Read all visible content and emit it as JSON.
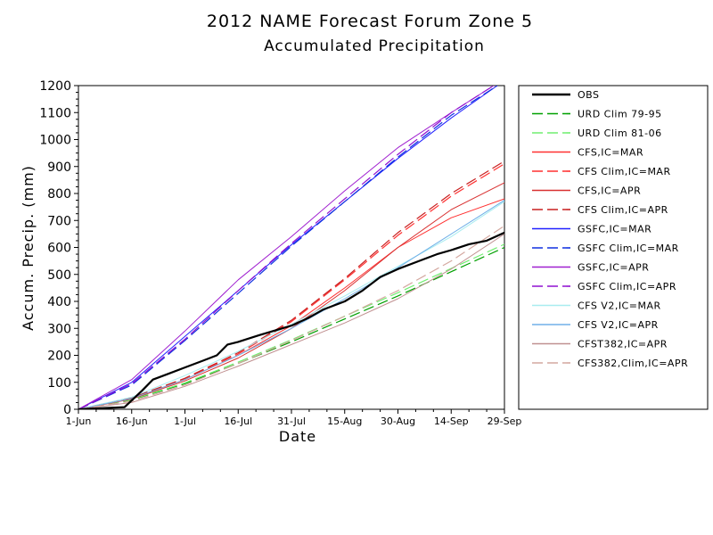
{
  "chart_data": {
    "type": "line",
    "title": "2012 NAME Forecast Forum Zone 5",
    "subtitle": "Accumulated Precipitation",
    "xlabel": "Date",
    "ylabel": "Accum. Precip. (mm)",
    "ylim": [
      0,
      1200
    ],
    "yticks": [
      0,
      100,
      200,
      300,
      400,
      500,
      600,
      700,
      800,
      900,
      1000,
      1100,
      1200
    ],
    "xlim": [
      "2012-06-01",
      "2012-09-29"
    ],
    "xticks": [
      {
        "date": "2012-06-01",
        "label": "1-Jun"
      },
      {
        "date": "2012-06-16",
        "label": "16-Jun"
      },
      {
        "date": "2012-07-01",
        "label": "1-Jul"
      },
      {
        "date": "2012-07-16",
        "label": "16-Jul"
      },
      {
        "date": "2012-07-31",
        "label": "31-Jul"
      },
      {
        "date": "2012-08-15",
        "label": "15-Aug"
      },
      {
        "date": "2012-08-30",
        "label": "30-Aug"
      },
      {
        "date": "2012-09-14",
        "label": "14-Sep"
      },
      {
        "date": "2012-09-29",
        "label": "29-Sep"
      }
    ],
    "grid": false,
    "legend_position": "right",
    "series": [
      {
        "name": "OBS",
        "color": "#000000",
        "dash": "solid",
        "width": 2.2,
        "points": [
          [
            "2012-06-01",
            0
          ],
          [
            "2012-06-14",
            8
          ],
          [
            "2012-06-19",
            70
          ],
          [
            "2012-06-22",
            110
          ],
          [
            "2012-06-26",
            130
          ],
          [
            "2012-07-01",
            155
          ],
          [
            "2012-07-06",
            180
          ],
          [
            "2012-07-10",
            200
          ],
          [
            "2012-07-13",
            240
          ],
          [
            "2012-07-16",
            250
          ],
          [
            "2012-07-22",
            275
          ],
          [
            "2012-07-31",
            310
          ],
          [
            "2012-08-05",
            340
          ],
          [
            "2012-08-09",
            370
          ],
          [
            "2012-08-15",
            400
          ],
          [
            "2012-08-20",
            440
          ],
          [
            "2012-08-25",
            490
          ],
          [
            "2012-08-30",
            520
          ],
          [
            "2012-09-05",
            550
          ],
          [
            "2012-09-10",
            575
          ],
          [
            "2012-09-14",
            590
          ],
          [
            "2012-09-19",
            612
          ],
          [
            "2012-09-24",
            625
          ],
          [
            "2012-09-29",
            655
          ]
        ]
      },
      {
        "name": "URD Clim 79-95",
        "color": "#00a000",
        "dash": "dashed",
        "width": 1.2,
        "points": [
          [
            "2012-06-01",
            0
          ],
          [
            "2012-06-16",
            35
          ],
          [
            "2012-07-01",
            95
          ],
          [
            "2012-07-16",
            170
          ],
          [
            "2012-07-31",
            250
          ],
          [
            "2012-08-15",
            335
          ],
          [
            "2012-08-30",
            420
          ],
          [
            "2012-09-14",
            510
          ],
          [
            "2012-09-29",
            600
          ]
        ]
      },
      {
        "name": "URD Clim 81-06",
        "color": "#70ee70",
        "dash": "dashed",
        "width": 1.2,
        "points": [
          [
            "2012-06-01",
            0
          ],
          [
            "2012-06-16",
            36
          ],
          [
            "2012-07-01",
            98
          ],
          [
            "2012-07-16",
            175
          ],
          [
            "2012-07-31",
            258
          ],
          [
            "2012-08-15",
            345
          ],
          [
            "2012-08-30",
            432
          ],
          [
            "2012-09-14",
            522
          ],
          [
            "2012-09-29",
            612
          ]
        ]
      },
      {
        "name": "CFS,IC=MAR",
        "color": "#ff3030",
        "dash": "solid",
        "width": 1.0,
        "points": [
          [
            "2012-06-01",
            0
          ],
          [
            "2012-06-16",
            40
          ],
          [
            "2012-07-01",
            110
          ],
          [
            "2012-07-16",
            200
          ],
          [
            "2012-07-31",
            310
          ],
          [
            "2012-08-15",
            450
          ],
          [
            "2012-08-30",
            600
          ],
          [
            "2012-09-14",
            710
          ],
          [
            "2012-09-29",
            780
          ]
        ]
      },
      {
        "name": "CFS Clim,IC=MAR",
        "color": "#ff3030",
        "dash": "dashed",
        "width": 1.2,
        "points": [
          [
            "2012-06-01",
            0
          ],
          [
            "2012-06-16",
            42
          ],
          [
            "2012-07-01",
            112
          ],
          [
            "2012-07-16",
            205
          ],
          [
            "2012-07-31",
            325
          ],
          [
            "2012-08-15",
            480
          ],
          [
            "2012-08-30",
            645
          ],
          [
            "2012-09-14",
            790
          ],
          [
            "2012-09-29",
            910
          ]
        ]
      },
      {
        "name": "CFS,IC=APR",
        "color": "#d83030",
        "dash": "solid",
        "width": 1.0,
        "points": [
          [
            "2012-06-01",
            0
          ],
          [
            "2012-06-16",
            38
          ],
          [
            "2012-07-01",
            105
          ],
          [
            "2012-07-16",
            190
          ],
          [
            "2012-07-31",
            300
          ],
          [
            "2012-08-15",
            440
          ],
          [
            "2012-08-30",
            600
          ],
          [
            "2012-09-14",
            740
          ],
          [
            "2012-09-29",
            840
          ]
        ]
      },
      {
        "name": "CFS Clim,IC=APR",
        "color": "#c82020",
        "dash": "dashed",
        "width": 1.2,
        "points": [
          [
            "2012-06-01",
            0
          ],
          [
            "2012-06-16",
            43
          ],
          [
            "2012-07-01",
            115
          ],
          [
            "2012-07-16",
            210
          ],
          [
            "2012-07-31",
            330
          ],
          [
            "2012-08-15",
            485
          ],
          [
            "2012-08-30",
            655
          ],
          [
            "2012-09-14",
            800
          ],
          [
            "2012-09-29",
            920
          ]
        ]
      },
      {
        "name": "GSFC,IC=MAR",
        "color": "#2020ff",
        "dash": "solid",
        "width": 1.0,
        "points": [
          [
            "2012-06-01",
            0
          ],
          [
            "2012-06-16",
            100
          ],
          [
            "2012-07-01",
            270
          ],
          [
            "2012-07-16",
            440
          ],
          [
            "2012-07-31",
            610
          ],
          [
            "2012-08-15",
            770
          ],
          [
            "2012-08-30",
            930
          ],
          [
            "2012-09-14",
            1080
          ],
          [
            "2012-09-27",
            1200
          ]
        ]
      },
      {
        "name": "GSFC Clim,IC=MAR",
        "color": "#1030e0",
        "dash": "dashed",
        "width": 1.2,
        "points": [
          [
            "2012-06-01",
            0
          ],
          [
            "2012-06-16",
            90
          ],
          [
            "2012-07-01",
            255
          ],
          [
            "2012-07-16",
            430
          ],
          [
            "2012-07-31",
            605
          ],
          [
            "2012-08-15",
            770
          ],
          [
            "2012-08-30",
            935
          ],
          [
            "2012-09-14",
            1090
          ],
          [
            "2012-09-27",
            1200
          ]
        ]
      },
      {
        "name": "GSFC,IC=APR",
        "color": "#a020d0",
        "dash": "solid",
        "width": 1.0,
        "points": [
          [
            "2012-06-01",
            0
          ],
          [
            "2012-06-16",
            110
          ],
          [
            "2012-07-01",
            290
          ],
          [
            "2012-07-16",
            480
          ],
          [
            "2012-07-31",
            640
          ],
          [
            "2012-08-15",
            810
          ],
          [
            "2012-08-30",
            970
          ],
          [
            "2012-09-14",
            1100
          ],
          [
            "2012-09-26",
            1200
          ]
        ]
      },
      {
        "name": "GSFC Clim,IC=APR",
        "color": "#9010d0",
        "dash": "dashed",
        "width": 1.2,
        "points": [
          [
            "2012-06-01",
            0
          ],
          [
            "2012-06-16",
            95
          ],
          [
            "2012-07-01",
            260
          ],
          [
            "2012-07-16",
            440
          ],
          [
            "2012-07-31",
            615
          ],
          [
            "2012-08-15",
            780
          ],
          [
            "2012-08-30",
            945
          ],
          [
            "2012-09-14",
            1100
          ],
          [
            "2012-09-26",
            1200
          ]
        ]
      },
      {
        "name": "CFS V2,IC=MAR",
        "color": "#a8ecf0",
        "dash": "solid",
        "width": 1.0,
        "points": [
          [
            "2012-06-01",
            0
          ],
          [
            "2012-06-16",
            45
          ],
          [
            "2012-07-01",
            125
          ],
          [
            "2012-07-16",
            215
          ],
          [
            "2012-07-31",
            315
          ],
          [
            "2012-08-15",
            420
          ],
          [
            "2012-08-30",
            530
          ],
          [
            "2012-09-14",
            640
          ],
          [
            "2012-09-29",
            770
          ]
        ]
      },
      {
        "name": "CFS V2,IC=APR",
        "color": "#70b0e8",
        "dash": "solid",
        "width": 1.0,
        "points": [
          [
            "2012-06-01",
            0
          ],
          [
            "2012-06-16",
            40
          ],
          [
            "2012-07-01",
            110
          ],
          [
            "2012-07-16",
            200
          ],
          [
            "2012-07-31",
            300
          ],
          [
            "2012-08-15",
            410
          ],
          [
            "2012-08-30",
            525
          ],
          [
            "2012-09-14",
            650
          ],
          [
            "2012-09-29",
            775
          ]
        ]
      },
      {
        "name": "CFST382,IC=APR",
        "color": "#c09090",
        "dash": "solid",
        "width": 1.0,
        "points": [
          [
            "2012-06-01",
            0
          ],
          [
            "2012-06-16",
            25
          ],
          [
            "2012-07-01",
            85
          ],
          [
            "2012-07-16",
            160
          ],
          [
            "2012-07-31",
            240
          ],
          [
            "2012-08-15",
            320
          ],
          [
            "2012-08-30",
            410
          ],
          [
            "2012-09-14",
            520
          ],
          [
            "2012-09-29",
            650
          ]
        ]
      },
      {
        "name": "CFS382,Clim,IC=APR",
        "color": "#d4a8a0",
        "dash": "dashed",
        "width": 1.2,
        "points": [
          [
            "2012-06-01",
            0
          ],
          [
            "2012-06-16",
            30
          ],
          [
            "2012-07-01",
            90
          ],
          [
            "2012-07-16",
            170
          ],
          [
            "2012-07-31",
            255
          ],
          [
            "2012-08-15",
            345
          ],
          [
            "2012-08-30",
            440
          ],
          [
            "2012-09-14",
            550
          ],
          [
            "2012-09-29",
            680
          ]
        ]
      }
    ]
  }
}
